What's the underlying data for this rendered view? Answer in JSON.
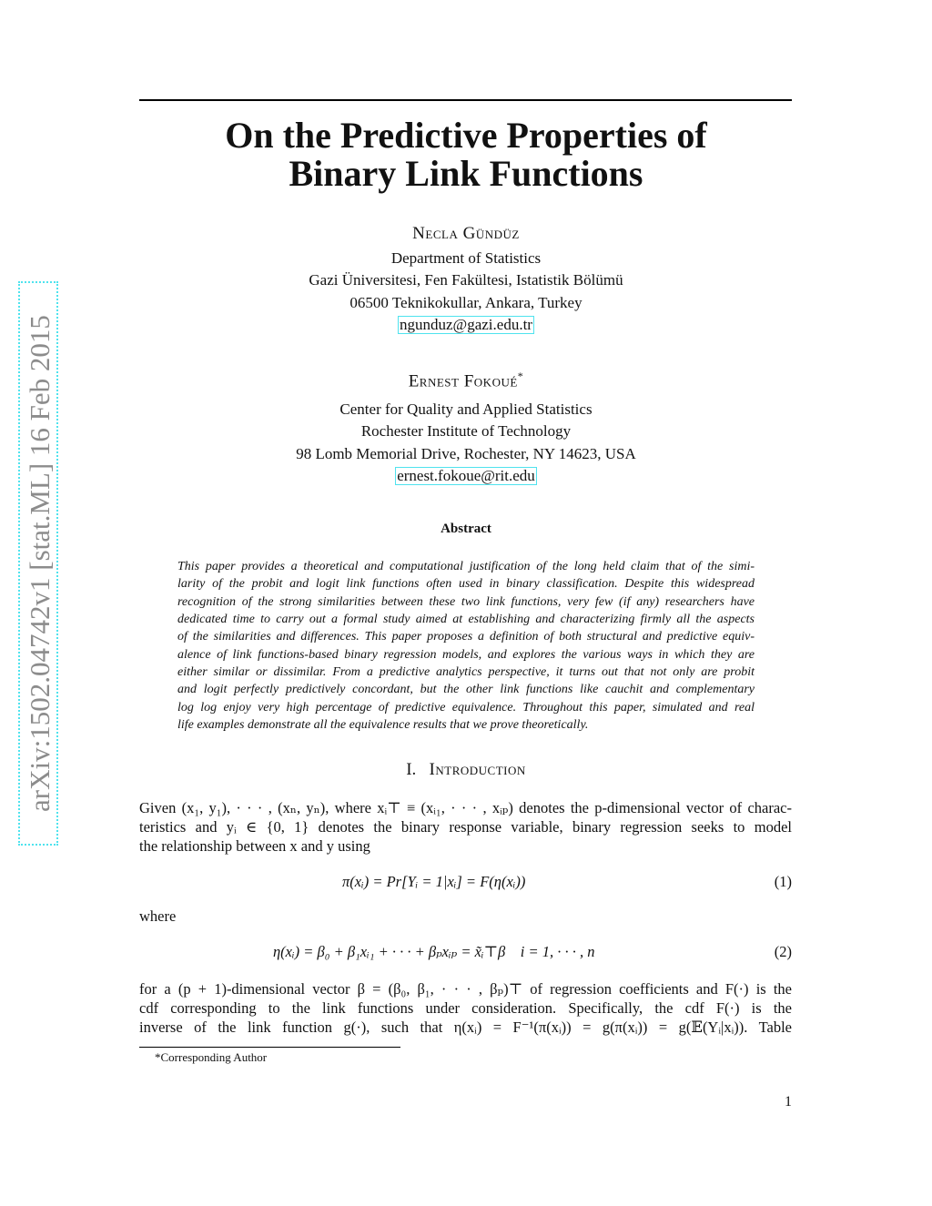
{
  "sidebar_stamp": "arXiv:1502.04742v1  [stat.ML]  16 Feb 2015",
  "title_lines": [
    "On the Predictive Properties of",
    "Binary Link Functions"
  ],
  "authors": [
    {
      "name": "Necla Gündüz",
      "affiliation": [
        "Department of Statistics",
        "Gazi Üniversitesi, Fen Fakültesi, Istatistik Bölümü",
        "06500 Teknikokullar, Ankara, Turkey"
      ],
      "email": "ngunduz@gazi.edu.tr"
    },
    {
      "name": "Ernest Fokoué",
      "mark": "*",
      "affiliation": [
        "Center for Quality and Applied Statistics",
        "Rochester Institute of Technology",
        "98 Lomb Memorial Drive, Rochester, NY 14623, USA"
      ],
      "email": "ernest.fokoue@rit.edu"
    }
  ],
  "abstract": {
    "heading": "Abstract",
    "lines": [
      "This paper provides a theoretical and computational justification of the long held claim that of the simi-",
      "larity of the probit and logit link functions often used in binary classification.  Despite this widespread",
      "recognition of the strong similarities between these two link functions, very few (if any) researchers have",
      "dedicated time to carry out a formal study aimed at establishing and characterizing firmly all the aspects",
      "of the similarities and differences. This paper proposes a definition of both structural and predictive equiv-",
      "alence of link functions-based binary regression models, and explores the various ways in which they are",
      "either similar or dissimilar. From a predictive analytics perspective, it turns out that not only are probit",
      "and logit perfectly predictively concordant, but the other link functions like cauchit and complementary",
      "log log enjoy very high percentage of predictive equivalence. Throughout this paper, simulated and real",
      "life examples demonstrate all the equivalence results that we prove theoretically."
    ]
  },
  "section": {
    "number": "I.",
    "title": "Introduction"
  },
  "intro": {
    "para1": [
      "Given (x₁, y₁), · · · , (xₙ, yₙ), where xᵢ⊤ ≡ (xᵢ₁, · · · , xᵢₚ) denotes the p-dimensional vector of charac-",
      "teristics and yᵢ ∈ {0, 1} denotes the binary response variable, binary regression seeks to model",
      "the relationship between x and y using"
    ],
    "eq1": "π(xᵢ) = Pr[Yᵢ = 1|xᵢ] = F(η(xᵢ))",
    "eq1_number": "(1)",
    "where": "where",
    "eq2": "η(xᵢ) = β₀ + β₁xᵢ₁ + · · · + βₚxᵢₚ = x̃ᵢ⊤β    i = 1, · · · , n",
    "eq2_number": "(2)",
    "para2": [
      "for a (p + 1)-dimensional vector β = (β₀, β₁, · · · , βₚ)⊤ of regression coefficients and F(·) is the",
      "cdf corresponding to the link functions under consideration.  Specifically, the cdf F(·) is the",
      "inverse of the link function g(·), such that η(xᵢ) = F⁻¹(π(xᵢ)) = g(π(xᵢ)) = g(𝔼(Yᵢ|xᵢ)). Table"
    ]
  },
  "footnote": "*Corresponding Author",
  "page_number": "1"
}
